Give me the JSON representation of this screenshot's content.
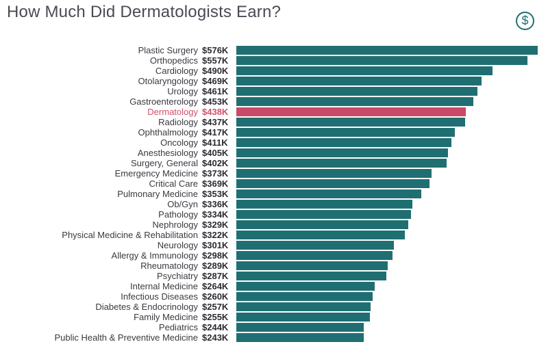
{
  "title": "How Much Did Dermatologists Earn?",
  "icon": "dollar-circle-icon",
  "colors": {
    "bar": "#1f6f72",
    "highlight": "#c94a66",
    "highlight_text": "#d0506b",
    "title": "#4a4a55"
  },
  "chart_data": {
    "type": "bar",
    "orientation": "horizontal",
    "title": "How Much Did Dermatologists Earn?",
    "xlabel": "",
    "ylabel": "",
    "unit": "$K",
    "highlight": "Dermatology",
    "grid": false,
    "legend": "none",
    "categories": [
      "Plastic Surgery",
      "Orthopedics",
      "Cardiology",
      "Otolaryngology",
      "Urology",
      "Gastroenterology",
      "Dermatology",
      "Radiology",
      "Ophthalmology",
      "Oncology",
      "Anesthesiology",
      "Surgery, General",
      "Emergency Medicine",
      "Critical Care",
      "Pulmonary Medicine",
      "Ob/Gyn",
      "Pathology",
      "Nephrology",
      "Physical Medicine & Rehabilitation",
      "Neurology",
      "Allergy & Immunology",
      "Rheumatology",
      "Psychiatry",
      "Internal Medicine",
      "Infectious Diseases",
      "Diabetes & Endocrinology",
      "Family Medicine",
      "Pediatrics",
      "Public Health & Preventive Medicine"
    ],
    "values": [
      576,
      557,
      490,
      469,
      461,
      453,
      438,
      437,
      417,
      411,
      405,
      402,
      373,
      369,
      353,
      336,
      334,
      329,
      322,
      301,
      298,
      289,
      287,
      264,
      260,
      257,
      255,
      244,
      243
    ],
    "value_labels": [
      "$576K",
      "$557K",
      "$490K",
      "$469K",
      "$461K",
      "$453K",
      "$438K",
      "$437K",
      "$417K",
      "$411K",
      "$405K",
      "$402K",
      "$373K",
      "$369K",
      "$353K",
      "$336K",
      "$334K",
      "$329K",
      "$322K",
      "$301K",
      "$298K",
      "$289K",
      "$287K",
      "$264K",
      "$260K",
      "$257K",
      "$255K",
      "$244K",
      "$243K"
    ]
  }
}
